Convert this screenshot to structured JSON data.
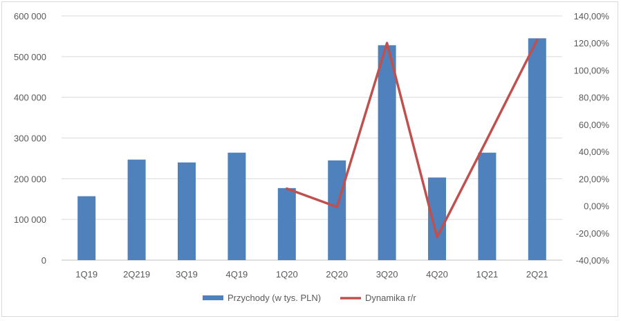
{
  "chart_data": {
    "type": "bar",
    "categories": [
      "1Q19",
      "2Q219",
      "3Q19",
      "4Q19",
      "1Q20",
      "2Q20",
      "3Q20",
      "4Q20",
      "1Q21",
      "2Q21"
    ],
    "series": [
      {
        "name": "Przychody (w tys. PLN)",
        "type": "bar",
        "axis": "left",
        "color": "#4f81bd",
        "values": [
          157000,
          247000,
          240000,
          264000,
          177000,
          245000,
          528000,
          203000,
          264000,
          545000
        ]
      },
      {
        "name": "Dynamika r/r",
        "type": "line",
        "axis": "right",
        "color": "#c0504d",
        "values": [
          null,
          null,
          null,
          null,
          12.7,
          -0.8,
          120.0,
          -23.1,
          49.2,
          122.4
        ]
      }
    ],
    "y_left": {
      "ylim": [
        0,
        600000
      ],
      "ticks": [
        0,
        100000,
        200000,
        300000,
        400000,
        500000,
        600000
      ],
      "tick_labels": [
        "0",
        "100 000",
        "200 000",
        "300 000",
        "400 000",
        "500 000",
        "600 000"
      ]
    },
    "y_right": {
      "ylim": [
        -40,
        140
      ],
      "ticks": [
        -40,
        -20,
        0,
        20,
        40,
        60,
        80,
        100,
        120,
        140
      ],
      "tick_labels": [
        "-40,00%",
        "-20,00%",
        "0,00%",
        "20,00%",
        "40,00%",
        "60,00%",
        "80,00%",
        "100,00%",
        "120,00%",
        "140,00%"
      ]
    },
    "grid": true,
    "legend_position": "bottom",
    "legend": [
      "Przychody (w tys. PLN)",
      "Dynamika r/r"
    ]
  }
}
